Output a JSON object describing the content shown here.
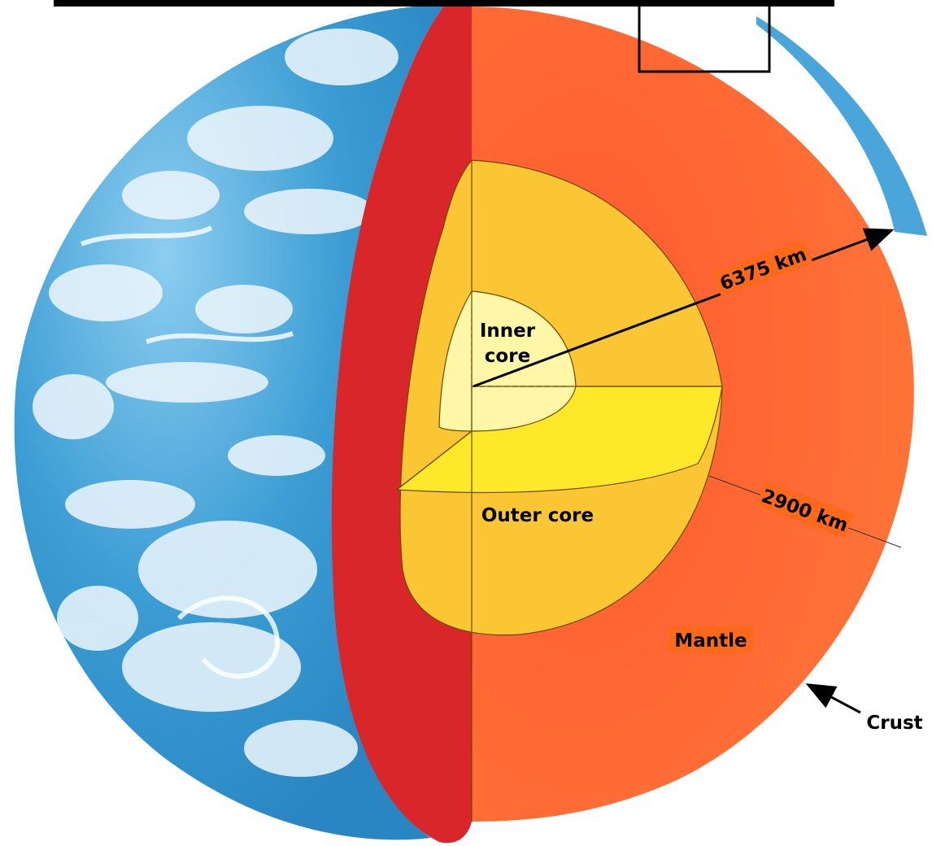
{
  "labels": {
    "inner_core": [
      "Inner",
      "core"
    ],
    "outer_core": "Outer core",
    "mantle": "Mantle",
    "crust": "Crust",
    "radius": "6375 km",
    "mantle_thickness": "2900 km"
  },
  "colors": {
    "ocean": "#3a9bd2",
    "ocean_light": "#7cc3ea",
    "cloud": "#eef7fc",
    "mantle": "#ff6a35",
    "mantle_cut_face": "#d9262a",
    "outer_core": "#fbc634",
    "outer_core_front": "#ffe829",
    "inner_core": "#fff6a8",
    "label_bg": "#ff6a1a",
    "frame": "#000000"
  },
  "icons": {
    "radius_arrow": "arrow-icon",
    "crust_pointer": "arrow-icon"
  }
}
